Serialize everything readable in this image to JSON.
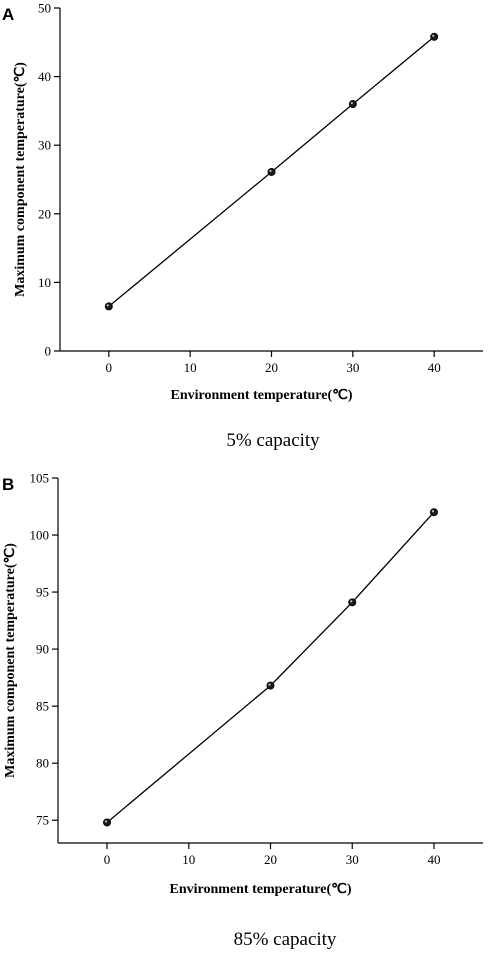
{
  "chart_data": [
    {
      "type": "line",
      "panel_label": "A",
      "xlabel": "Environment temperature(℃)",
      "ylabel": "Maximum component temperature(℃)",
      "caption": "5% capacity",
      "x": [
        0,
        20,
        30,
        40
      ],
      "series": [
        {
          "values": [
            6.5,
            26.1,
            36.0,
            45.8
          ]
        }
      ],
      "xlim": [
        -6,
        46
      ],
      "ylim": [
        0,
        50
      ],
      "xticks": [
        0,
        10,
        20,
        30,
        40
      ],
      "yticks": [
        0,
        10,
        20,
        30,
        40,
        50
      ],
      "grid": false
    },
    {
      "type": "line",
      "panel_label": "B",
      "xlabel": "Environment temperature(℃)",
      "ylabel": "Maximum component temperature(℃)",
      "caption": "85% capacity",
      "x": [
        0,
        20,
        30,
        40
      ],
      "series": [
        {
          "values": [
            74.8,
            86.8,
            94.1,
            102.0
          ]
        }
      ],
      "xlim": [
        -6,
        46
      ],
      "ylim": [
        73,
        105
      ],
      "xticks": [
        0,
        10,
        20,
        30,
        40
      ],
      "yticks": [
        75,
        80,
        85,
        90,
        95,
        100,
        105
      ],
      "grid": false
    }
  ]
}
